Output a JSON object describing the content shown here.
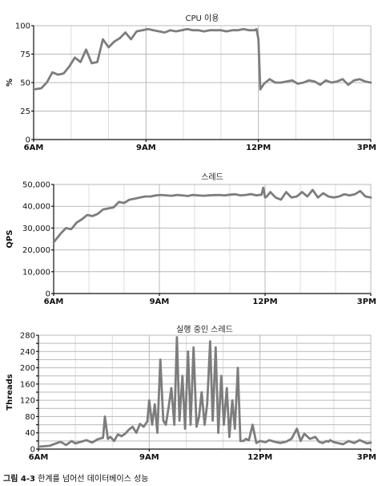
{
  "caption": {
    "label": "그림 4-3",
    "text": " 한계를 넘어선 데이터베이스 성능"
  },
  "chart_data": [
    {
      "type": "line",
      "title": "CPU 이용",
      "ylabel": "%",
      "xlabel": "",
      "ylim": [
        0,
        100
      ],
      "yticks": [
        0,
        25,
        50,
        75,
        100
      ],
      "ytick_labels": [
        "0",
        "25",
        "50",
        "75",
        "100"
      ],
      "xlim": [
        6,
        15
      ],
      "xticks": [
        6,
        9,
        12,
        15
      ],
      "xtick_labels": [
        "6AM",
        "9AM",
        "12PM",
        "3PM"
      ],
      "series": [
        {
          "name": "CPU 이용",
          "x": [
            6,
            6.2,
            6.35,
            6.5,
            6.65,
            6.8,
            6.95,
            7.1,
            7.25,
            7.4,
            7.55,
            7.7,
            7.85,
            8.0,
            8.15,
            8.3,
            8.45,
            8.6,
            8.75,
            8.9,
            9.05,
            9.2,
            9.35,
            9.5,
            9.65,
            9.8,
            9.95,
            10.1,
            10.25,
            10.4,
            10.55,
            10.7,
            10.85,
            11.0,
            11.15,
            11.3,
            11.45,
            11.6,
            11.75,
            11.9,
            11.95,
            12.0,
            12.05,
            12.15,
            12.3,
            12.45,
            12.6,
            12.75,
            12.9,
            13.05,
            13.2,
            13.35,
            13.5,
            13.65,
            13.8,
            13.95,
            14.1,
            14.25,
            14.4,
            14.55,
            14.7,
            14.85,
            15.0
          ],
          "values": [
            44,
            45,
            50,
            59,
            57,
            58,
            64,
            72,
            68,
            79,
            67,
            68,
            88,
            81,
            86,
            89,
            94,
            88,
            95,
            96,
            97,
            96,
            95,
            94,
            96,
            95,
            96,
            97,
            96,
            96,
            95,
            96,
            96,
            96,
            95,
            96,
            96,
            97,
            96,
            96,
            97,
            88,
            44,
            49,
            53,
            50,
            50,
            51,
            52,
            49,
            50,
            52,
            51,
            48,
            52,
            50,
            51,
            53,
            48,
            52,
            53,
            51,
            50
          ]
        }
      ]
    },
    {
      "type": "line",
      "title": "스레드",
      "ylabel": "QPS",
      "xlabel": "",
      "ylim": [
        0,
        50000
      ],
      "yticks": [
        0,
        10000,
        20000,
        30000,
        40000,
        50000
      ],
      "ytick_labels": [
        "0",
        "10,000",
        "20,000",
        "30,000",
        "40,000",
        "50,000"
      ],
      "xlim": [
        6,
        15
      ],
      "xticks": [
        6,
        9,
        12,
        15
      ],
      "xtick_labels": [
        "6AM",
        "9AM",
        "12PM",
        "3PM"
      ],
      "series": [
        {
          "name": "QPS",
          "x": [
            6,
            6.2,
            6.35,
            6.5,
            6.65,
            6.8,
            6.95,
            7.1,
            7.25,
            7.4,
            7.55,
            7.7,
            7.85,
            8.0,
            8.15,
            8.3,
            8.45,
            8.6,
            8.75,
            8.9,
            9.05,
            9.2,
            9.35,
            9.5,
            9.65,
            9.8,
            9.95,
            10.1,
            10.25,
            10.4,
            10.55,
            10.7,
            10.85,
            11.0,
            11.15,
            11.3,
            11.45,
            11.6,
            11.75,
            11.9,
            11.95,
            12.0,
            12.05,
            12.15,
            12.3,
            12.45,
            12.6,
            12.75,
            12.9,
            13.05,
            13.2,
            13.35,
            13.5,
            13.65,
            13.8,
            13.95,
            14.1,
            14.25,
            14.4,
            14.55,
            14.7,
            14.85,
            15.0
          ],
          "values": [
            23500,
            27500,
            30000,
            29500,
            32500,
            34000,
            36000,
            35500,
            36500,
            38500,
            39000,
            39500,
            42000,
            41500,
            43000,
            43500,
            44000,
            44500,
            44500,
            45000,
            45200,
            45000,
            44800,
            45200,
            45000,
            44700,
            45200,
            45000,
            44800,
            45000,
            45100,
            45200,
            45000,
            45300,
            45500,
            45000,
            45200,
            45600,
            45000,
            45300,
            48500,
            44000,
            44500,
            46500,
            44000,
            43000,
            46500,
            44000,
            44500,
            46500,
            44500,
            47500,
            44000,
            46000,
            44500,
            44000,
            44500,
            45500,
            45000,
            45500,
            47000,
            44500,
            44000
          ]
        }
      ]
    },
    {
      "type": "line",
      "title": "실행 중인 스레드",
      "ylabel": "Threads",
      "xlabel": "",
      "ylim": [
        0,
        280
      ],
      "yticks": [
        0,
        20,
        40,
        60,
        80,
        100,
        120,
        140,
        160,
        180,
        200,
        220,
        240,
        260,
        280
      ],
      "ytick_labels": [
        "0",
        "",
        "40",
        "",
        "80",
        "",
        "120",
        "",
        "160",
        "",
        "200",
        "",
        "240",
        "",
        "280"
      ],
      "xlim": [
        6,
        15
      ],
      "xticks": [
        6,
        9,
        12,
        15
      ],
      "xtick_labels": [
        "6AM",
        "9AM",
        "12PM",
        "3PM"
      ],
      "series": [
        {
          "name": "Threads",
          "x": [
            6.0,
            6.3,
            6.5,
            6.6,
            6.75,
            6.9,
            7.0,
            7.15,
            7.3,
            7.45,
            7.6,
            7.75,
            7.8,
            7.88,
            7.95,
            8.05,
            8.15,
            8.25,
            8.35,
            8.45,
            8.55,
            8.65,
            8.75,
            8.85,
            8.95,
            9.0,
            9.08,
            9.15,
            9.22,
            9.3,
            9.38,
            9.45,
            9.52,
            9.6,
            9.68,
            9.75,
            9.82,
            9.9,
            9.97,
            10.05,
            10.12,
            10.2,
            10.28,
            10.35,
            10.42,
            10.5,
            10.57,
            10.65,
            10.72,
            10.8,
            10.87,
            10.95,
            11.02,
            11.1,
            11.17,
            11.25,
            11.32,
            11.4,
            11.47,
            11.55,
            11.62,
            11.7,
            11.8,
            11.9,
            12.0,
            12.1,
            12.15,
            12.25,
            12.4,
            12.55,
            12.7,
            12.85,
            13.0,
            13.1,
            13.2,
            13.35,
            13.5,
            13.6,
            13.7,
            13.8,
            13.85,
            13.9,
            14.0,
            14.1,
            14.25,
            14.4,
            14.55,
            14.7,
            14.8,
            14.9,
            15.0
          ],
          "values": [
            6,
            8,
            15,
            18,
            10,
            20,
            14,
            18,
            22,
            16,
            24,
            28,
            80,
            25,
            30,
            20,
            36,
            32,
            38,
            48,
            55,
            40,
            62,
            55,
            68,
            120,
            60,
            110,
            40,
            220,
            70,
            60,
            100,
            150,
            60,
            275,
            70,
            180,
            50,
            240,
            60,
            250,
            55,
            80,
            140,
            60,
            110,
            265,
            70,
            250,
            40,
            180,
            60,
            150,
            30,
            120,
            50,
            200,
            20,
            20,
            25,
            22,
            60,
            15,
            20,
            18,
            17,
            22,
            18,
            15,
            18,
            25,
            50,
            20,
            38,
            25,
            30,
            18,
            15,
            20,
            18,
            22,
            17,
            15,
            12,
            20,
            15,
            22,
            18,
            14,
            16
          ]
        }
      ]
    }
  ]
}
